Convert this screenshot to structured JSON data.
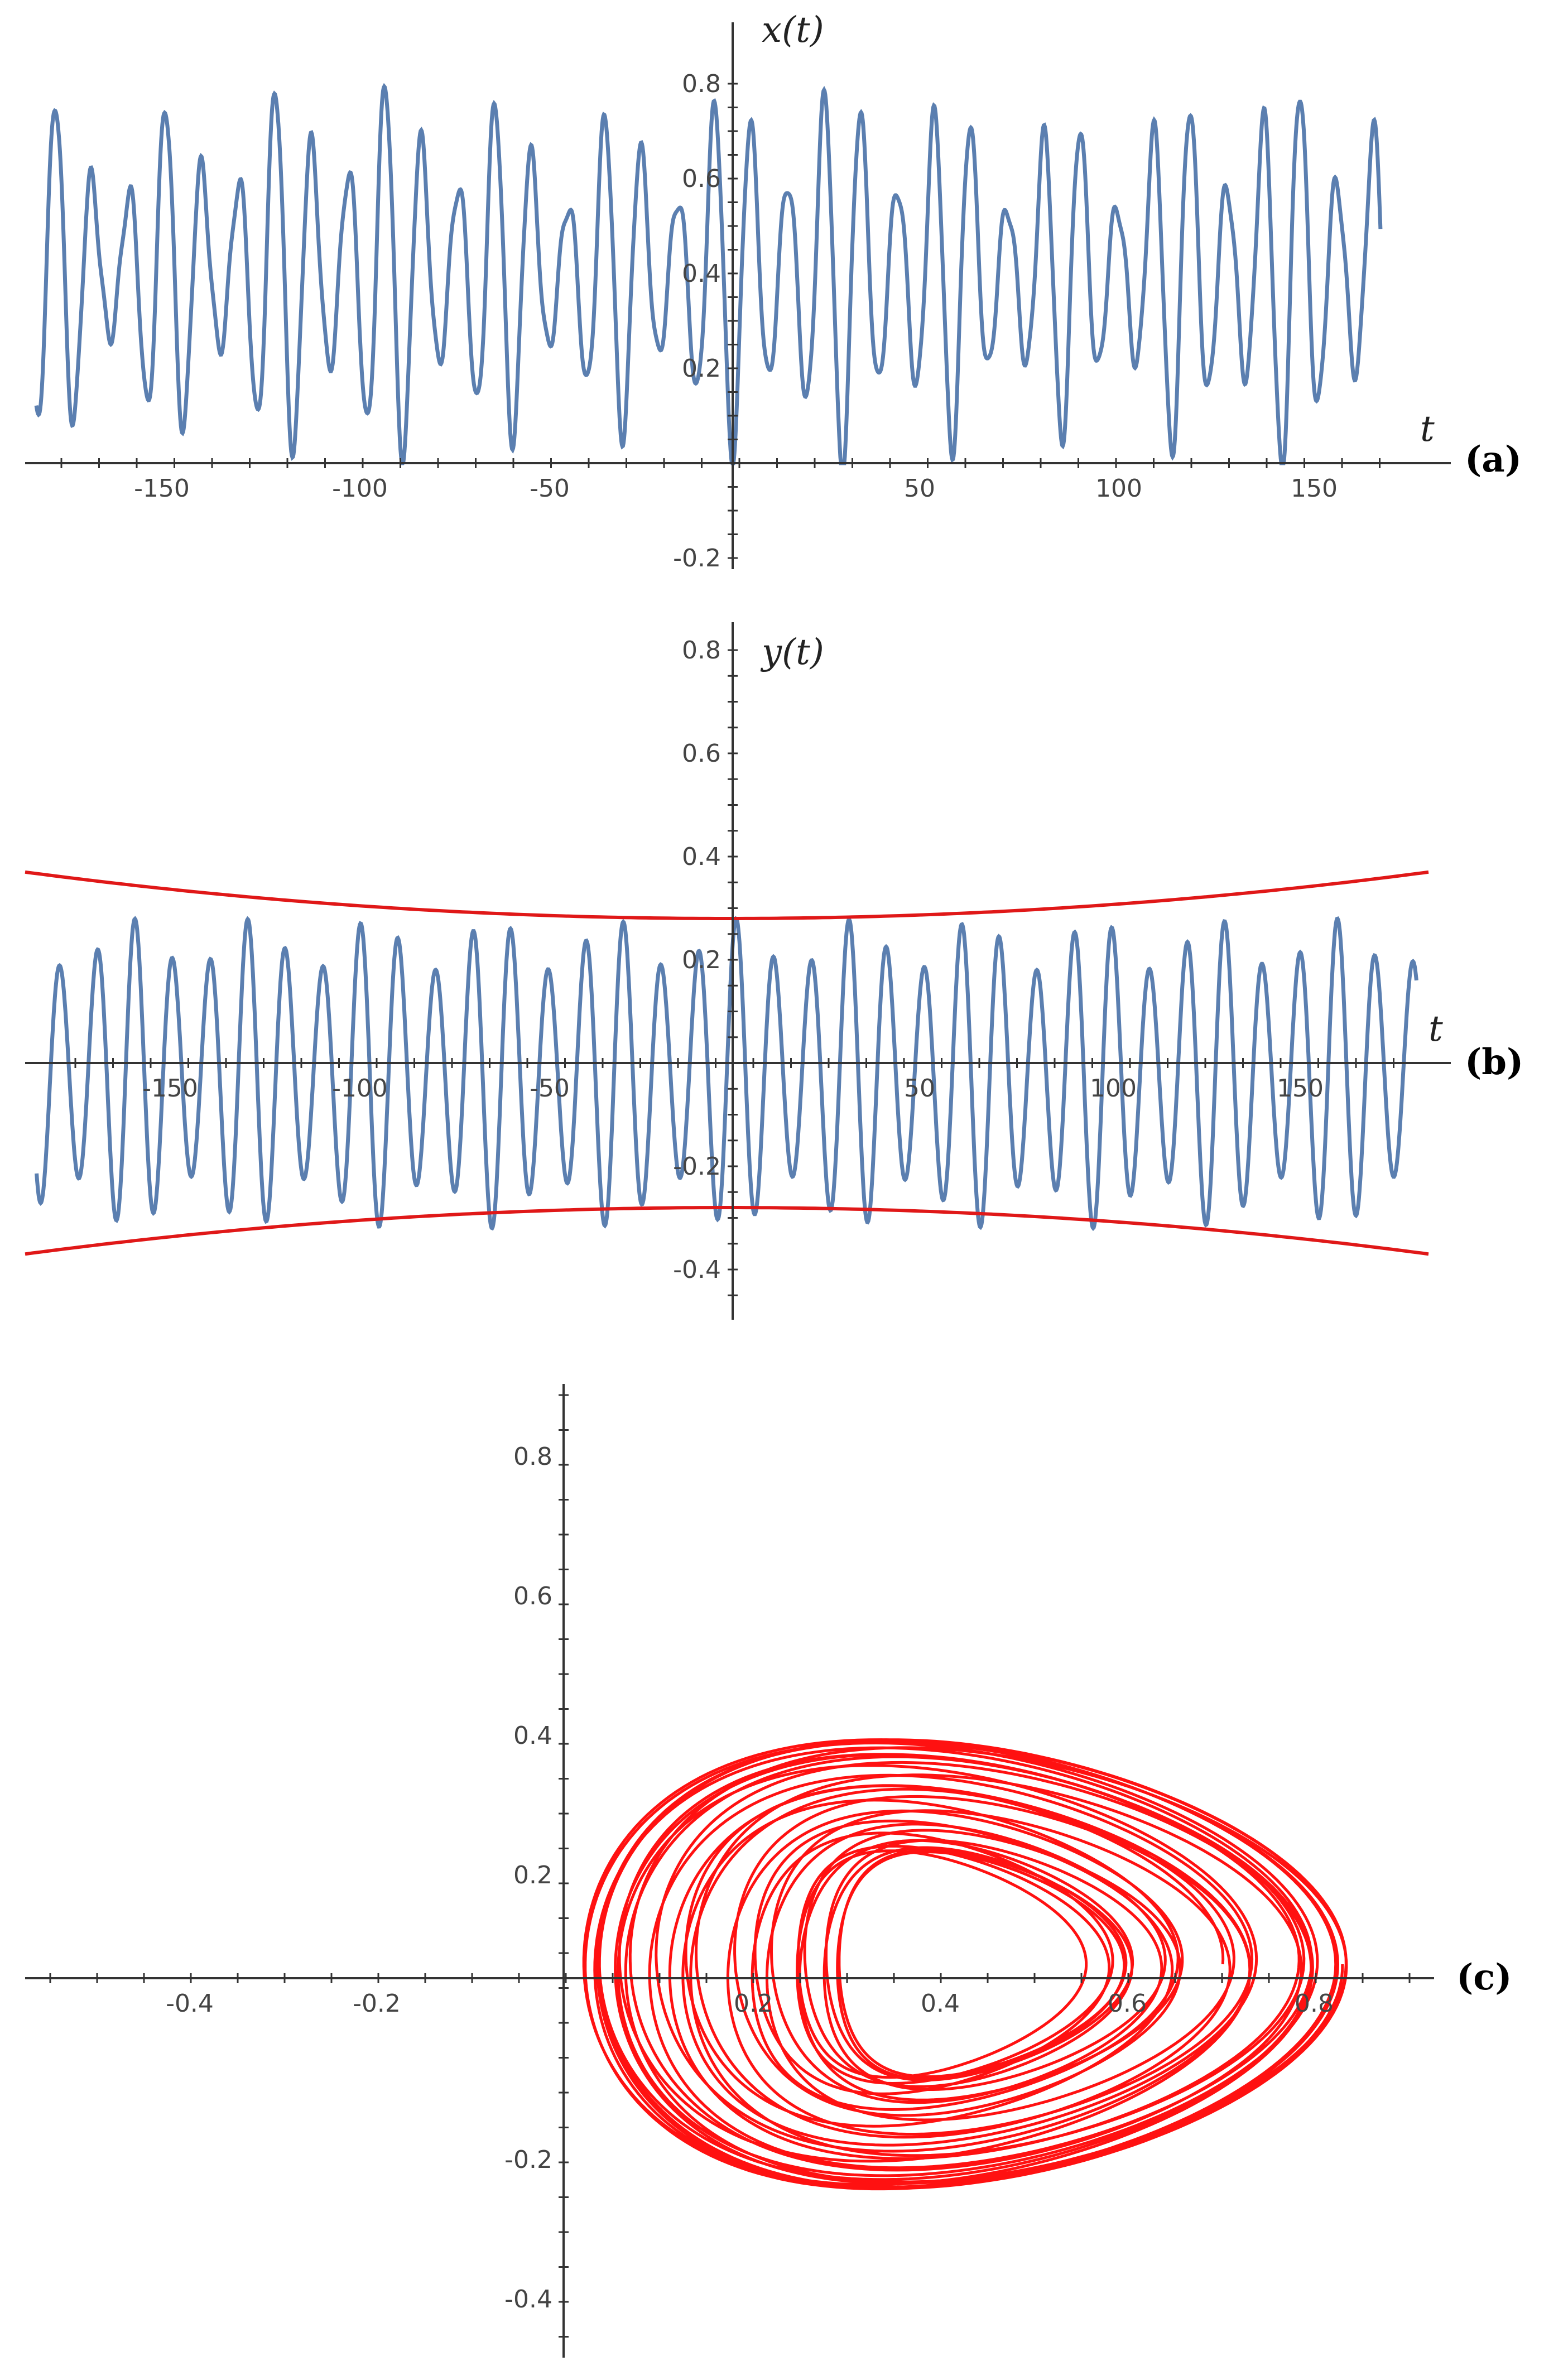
{
  "colors": {
    "series": "#5b7fb0",
    "envelope": "#e01818",
    "phase": "#ff1111",
    "axis": "#333333"
  },
  "chart_data": [
    {
      "type": "line",
      "panel_label": "(a)",
      "xlabel": "t",
      "ylabel": "x(t)",
      "xlim": [
        -183,
        183
      ],
      "ylim": [
        -0.2,
        0.85
      ],
      "x_ticks": [
        "-150",
        "-100",
        "-50",
        "50",
        "100",
        "150"
      ],
      "y_ticks": [
        "-0.2",
        "0.2",
        "0.4",
        "0.6",
        "0.8"
      ],
      "series": [
        {
          "values_description_sampled": {
            "t_range": [
              -180,
              180
            ],
            "center": 0.4,
            "amplitude_range": [
              0.1,
              0.4
            ],
            "period_approx": 9.8
          }
        }
      ]
    },
    {
      "type": "line",
      "panel_label": "(b)",
      "xlabel": "t",
      "ylabel": "y(t)",
      "xlim": [
        -183,
        183
      ],
      "ylim": [
        -0.5,
        0.85
      ],
      "x_ticks": [
        "-150",
        "-100",
        "-50",
        "50",
        "100",
        "150"
      ],
      "y_ticks": [
        "-0.4",
        "-0.2",
        "0.2",
        "0.4",
        "0.6",
        "0.8"
      ],
      "series": [
        {
          "values_description_sampled": {
            "t_range": [
              -180,
              180
            ],
            "center": 0.0,
            "amplitude_range": [
              0.22,
              0.33
            ],
            "period_approx": 9.8
          }
        },
        {
          "envelope_upper": {
            "t": [
              -183,
              -100,
              0,
              100,
              183
            ],
            "y": [
              0.37,
              0.31,
              0.28,
              0.31,
              0.37
            ]
          }
        },
        {
          "envelope_lower": {
            "t": [
              -183,
              -100,
              0,
              100,
              183
            ],
            "y": [
              -0.37,
              -0.31,
              -0.28,
              -0.31,
              -0.37
            ]
          }
        }
      ]
    },
    {
      "type": "line",
      "panel_label": "(c)",
      "xlabel": "",
      "ylabel": "",
      "xlim": [
        -0.55,
        0.9
      ],
      "ylim": [
        -0.45,
        0.85
      ],
      "x_ticks": [
        "-0.4",
        "-0.2",
        "0.2",
        "0.4",
        "0.6",
        "0.8"
      ],
      "y_ticks": [
        "-0.4",
        "-0.2",
        "0.2",
        "0.4",
        "0.6",
        "0.8"
      ],
      "series": [
        {
          "phase_portrait": {
            "x_range": [
              0.0,
              0.82
            ],
            "y_range": [
              -0.3,
              0.35
            ],
            "center": [
              0.4,
              0.02
            ]
          }
        }
      ]
    }
  ]
}
